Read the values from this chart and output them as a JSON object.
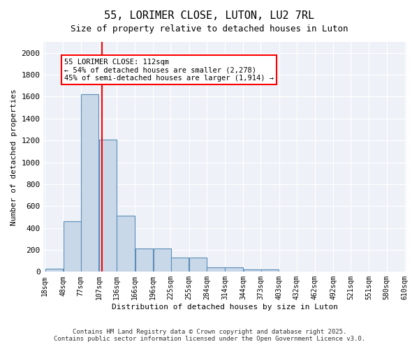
{
  "title": "55, LORIMER CLOSE, LUTON, LU2 7RL",
  "subtitle": "Size of property relative to detached houses in Luton",
  "xlabel": "Distribution of detached houses by size in Luton",
  "ylabel": "Number of detached properties",
  "bins": [
    18,
    48,
    77,
    107,
    136,
    166,
    196,
    225,
    255,
    284,
    314,
    344,
    373,
    403,
    432,
    462,
    492,
    521,
    551,
    580,
    610
  ],
  "bin_labels": [
    "18sqm",
    "48sqm",
    "77sqm",
    "107sqm",
    "136sqm",
    "166sqm",
    "196sqm",
    "225sqm",
    "255sqm",
    "284sqm",
    "314sqm",
    "344sqm",
    "373sqm",
    "403sqm",
    "432sqm",
    "462sqm",
    "492sqm",
    "521sqm",
    "551sqm",
    "580sqm",
    "610sqm"
  ],
  "heights": [
    30,
    460,
    1620,
    1210,
    510,
    215,
    215,
    130,
    130,
    40,
    40,
    20,
    20,
    0,
    0,
    0,
    0,
    0,
    0,
    0
  ],
  "bar_color": "#c8d8e8",
  "bar_edge_color": "#5b8db8",
  "vline_x": 112,
  "vline_color": "red",
  "annotation_text": "55 LORIMER CLOSE: 112sqm\n← 54% of detached houses are smaller (2,278)\n45% of semi-detached houses are larger (1,914) →",
  "annotation_box_color": "white",
  "annotation_box_edge": "red",
  "ylim": [
    0,
    2100
  ],
  "yticks": [
    0,
    200,
    400,
    600,
    800,
    1000,
    1200,
    1400,
    1600,
    1800,
    2000
  ],
  "background_color": "#eef2f8",
  "footer1": "Contains HM Land Registry data © Crown copyright and database right 2025.",
  "footer2": "Contains public sector information licensed under the Open Government Licence v3.0."
}
